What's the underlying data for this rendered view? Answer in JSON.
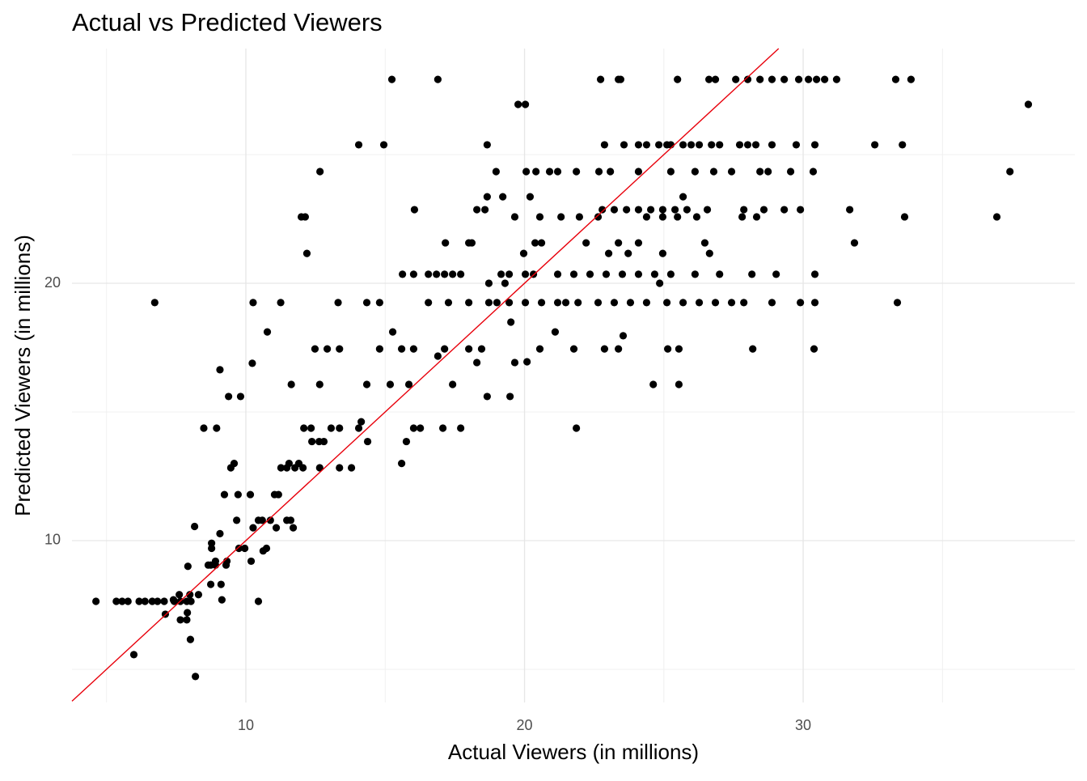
{
  "chart_data": {
    "type": "scatter",
    "title": "Actual vs Predicted Viewers",
    "x_label": "Actual Viewers (in millions)",
    "y_label": "Predicted Viewers (in millions)",
    "color": "#000000",
    "reference_line": {
      "slope": 1,
      "intercept": 0,
      "color": "#e8000b"
    },
    "xlim": [
      3.76,
      39.75
    ],
    "ylim": [
      3.71,
      29.12
    ],
    "xticks": [
      10,
      20,
      30
    ],
    "yticks": [
      10,
      20
    ],
    "x_minor_ticks": [
      5,
      15,
      25,
      35
    ],
    "y_minor_ticks": [
      5,
      15,
      25
    ],
    "grid": true,
    "x": [
      15.24,
      16.89,
      22.73,
      23.37,
      23.45,
      25.49,
      26.62,
      26.85,
      27.58,
      28.01,
      28.45,
      28.88,
      29.32,
      29.84,
      30.19,
      30.48,
      30.77,
      31.2,
      33.32,
      33.87,
      19.77,
      20.03,
      38.08,
      14.05,
      14.95,
      18.66,
      22.87,
      23.57,
      24.09,
      24.38,
      24.82,
      25.11,
      25.25,
      25.69,
      25.98,
      26.27,
      26.71,
      27.0,
      27.72,
      28.01,
      28.3,
      28.88,
      29.75,
      30.42,
      32.57,
      33.56,
      12.66,
      18.98,
      20.06,
      20.41,
      20.9,
      21.19,
      21.86,
      22.67,
      23.08,
      24.09,
      25.25,
      26.12,
      26.79,
      27.43,
      28.45,
      28.74,
      29.55,
      30.36,
      37.42,
      18.66,
      19.22,
      20.2,
      25.69,
      16.05,
      18.29,
      18.58,
      22.79,
      23.22,
      23.66,
      24.09,
      24.53,
      24.96,
      25.4,
      25.83,
      26.56,
      27.87,
      28.59,
      29.32,
      29.9,
      31.67,
      11.99,
      12.13,
      19.65,
      20.55,
      21.31,
      21.97,
      22.64,
      24.38,
      24.96,
      25.49,
      26.18,
      27.81,
      28.33,
      33.64,
      36.95,
      17.16,
      18.0,
      18.11,
      20.38,
      20.61,
      22.21,
      23.37,
      24.09,
      26.47,
      31.84,
      12.19,
      19.97,
      23.02,
      23.72,
      24.96,
      26.64,
      15.62,
      16.02,
      16.55,
      16.84,
      17.13,
      17.42,
      17.71,
      19.16,
      19.45,
      20.03,
      20.32,
      21.19,
      21.77,
      22.35,
      22.93,
      23.51,
      24.09,
      24.67,
      25.25,
      26.12,
      27.0,
      28.16,
      29.03,
      30.42,
      18.72,
      19.3,
      24.85,
      6.73,
      10.26,
      11.25,
      13.31,
      14.34,
      14.8,
      16.55,
      17.27,
      18.0,
      18.72,
      19.01,
      19.45,
      20.03,
      20.61,
      21.19,
      21.48,
      21.92,
      22.64,
      23.22,
      23.8,
      24.38,
      25.11,
      25.69,
      26.27,
      26.85,
      27.43,
      27.87,
      28.88,
      29.9,
      30.42,
      33.38,
      12.48,
      12.92,
      13.36,
      14.8,
      15.59,
      16.02,
      17.13,
      18.0,
      18.46,
      20.55,
      21.77,
      22.87,
      23.37,
      25.14,
      25.54,
      28.19,
      30.39,
      11.63,
      12.65,
      14.34,
      15.18,
      15.85,
      17.42,
      24.62,
      25.54,
      10.23,
      9.07,
      15.27,
      10.77,
      16.89,
      19.51,
      20.09,
      19.65,
      21.1,
      23.54,
      18.29,
      9.38,
      9.81,
      18.66,
      19.48,
      8.49,
      8.95,
      12.08,
      12.34,
      13.06,
      13.36,
      21.86,
      14.05,
      16.02,
      16.26,
      17.07,
      17.71,
      14.14,
      12.37,
      12.63,
      14.37,
      12.8,
      15.76,
      9.46,
      11.26,
      11.47,
      11.76,
      12.05,
      12.65,
      13.36,
      13.79,
      9.58,
      11.55,
      11.9,
      15.59,
      9.23,
      9.72,
      10.16,
      11.03,
      11.17,
      9.67,
      10.45,
      10.59,
      10.88,
      11.47,
      11.61,
      10.26,
      11.09,
      11.7,
      8.16,
      9.07,
      8.77,
      9.75,
      9.96,
      10.74,
      10.62,
      8.77,
      8.91,
      9.32,
      10.19,
      8.74,
      8.91,
      9.29,
      8.65,
      7.92,
      8.74,
      9.11,
      7.61,
      7.99,
      8.3,
      9.14,
      7.4,
      4.62,
      5.35,
      5.56,
      5.77,
      6.17,
      6.38,
      6.64,
      6.83,
      7.07,
      7.43,
      7.65,
      7.88,
      8.03,
      10.45,
      7.11,
      7.9,
      7.65,
      7.88,
      8.01,
      5.98,
      8.19
    ],
    "values": [
      27.92,
      27.92,
      27.92,
      27.92,
      27.92,
      27.92,
      27.92,
      27.92,
      27.92,
      27.92,
      27.92,
      27.92,
      27.92,
      27.92,
      27.92,
      27.92,
      27.92,
      27.92,
      27.92,
      27.92,
      26.95,
      26.95,
      26.95,
      25.38,
      25.38,
      25.38,
      25.38,
      25.38,
      25.38,
      25.38,
      25.38,
      25.38,
      25.38,
      25.38,
      25.38,
      25.38,
      25.38,
      25.38,
      25.38,
      25.38,
      25.38,
      25.38,
      25.38,
      25.38,
      25.38,
      25.38,
      24.34,
      24.34,
      24.34,
      24.34,
      24.34,
      24.34,
      24.34,
      24.34,
      24.34,
      24.34,
      24.34,
      24.34,
      24.34,
      24.34,
      24.34,
      24.34,
      24.34,
      24.34,
      24.34,
      23.36,
      23.36,
      23.36,
      23.36,
      22.86,
      22.86,
      22.86,
      22.86,
      22.86,
      22.86,
      22.86,
      22.86,
      22.86,
      22.86,
      22.86,
      22.86,
      22.86,
      22.86,
      22.86,
      22.86,
      22.86,
      22.58,
      22.58,
      22.58,
      22.58,
      22.58,
      22.58,
      22.58,
      22.58,
      22.58,
      22.58,
      22.58,
      22.58,
      22.58,
      22.58,
      22.58,
      21.57,
      21.57,
      21.57,
      21.57,
      21.57,
      21.57,
      21.57,
      21.57,
      21.57,
      21.57,
      21.16,
      21.16,
      21.16,
      21.16,
      21.16,
      21.16,
      20.35,
      20.35,
      20.35,
      20.35,
      20.35,
      20.35,
      20.35,
      20.35,
      20.35,
      20.35,
      20.35,
      20.35,
      20.35,
      20.35,
      20.35,
      20.35,
      20.35,
      20.35,
      20.35,
      20.35,
      20.35,
      20.35,
      20.35,
      20.35,
      20.0,
      20.0,
      20.0,
      19.25,
      19.25,
      19.25,
      19.25,
      19.25,
      19.25,
      19.25,
      19.25,
      19.25,
      19.25,
      19.25,
      19.25,
      19.25,
      19.25,
      19.25,
      19.25,
      19.25,
      19.25,
      19.25,
      19.25,
      19.25,
      19.25,
      19.25,
      19.25,
      19.25,
      19.25,
      19.25,
      19.25,
      19.25,
      19.25,
      19.25,
      17.45,
      17.45,
      17.45,
      17.45,
      17.45,
      17.45,
      17.45,
      17.45,
      17.45,
      17.45,
      17.45,
      17.45,
      17.45,
      17.45,
      17.45,
      17.45,
      17.45,
      16.07,
      16.07,
      16.07,
      16.07,
      16.07,
      16.07,
      16.07,
      16.07,
      16.89,
      16.64,
      18.11,
      18.11,
      17.17,
      18.49,
      16.95,
      16.92,
      18.11,
      17.96,
      16.92,
      15.6,
      15.6,
      15.6,
      15.6,
      14.37,
      14.37,
      14.37,
      14.37,
      14.37,
      14.37,
      14.37,
      14.37,
      14.37,
      14.37,
      14.37,
      14.37,
      14.62,
      13.85,
      13.85,
      13.85,
      13.85,
      13.85,
      12.83,
      12.83,
      12.83,
      12.83,
      12.83,
      12.83,
      12.83,
      12.83,
      13.0,
      13.0,
      13.0,
      13.0,
      11.79,
      11.79,
      11.79,
      11.79,
      11.79,
      10.79,
      10.79,
      10.79,
      10.79,
      10.79,
      10.79,
      10.5,
      10.5,
      10.5,
      10.55,
      10.27,
      9.7,
      9.7,
      9.7,
      9.7,
      9.6,
      9.9,
      9.2,
      9.2,
      9.2,
      9.05,
      9.05,
      9.05,
      9.05,
      9.0,
      8.3,
      8.3,
      7.9,
      7.9,
      7.9,
      7.7,
      7.7,
      7.64,
      7.64,
      7.64,
      7.64,
      7.64,
      7.64,
      7.64,
      7.64,
      7.64,
      7.64,
      7.64,
      7.64,
      7.64,
      7.64,
      7.14,
      7.2,
      6.92,
      6.92,
      6.16,
      5.57,
      4.72
    ]
  }
}
